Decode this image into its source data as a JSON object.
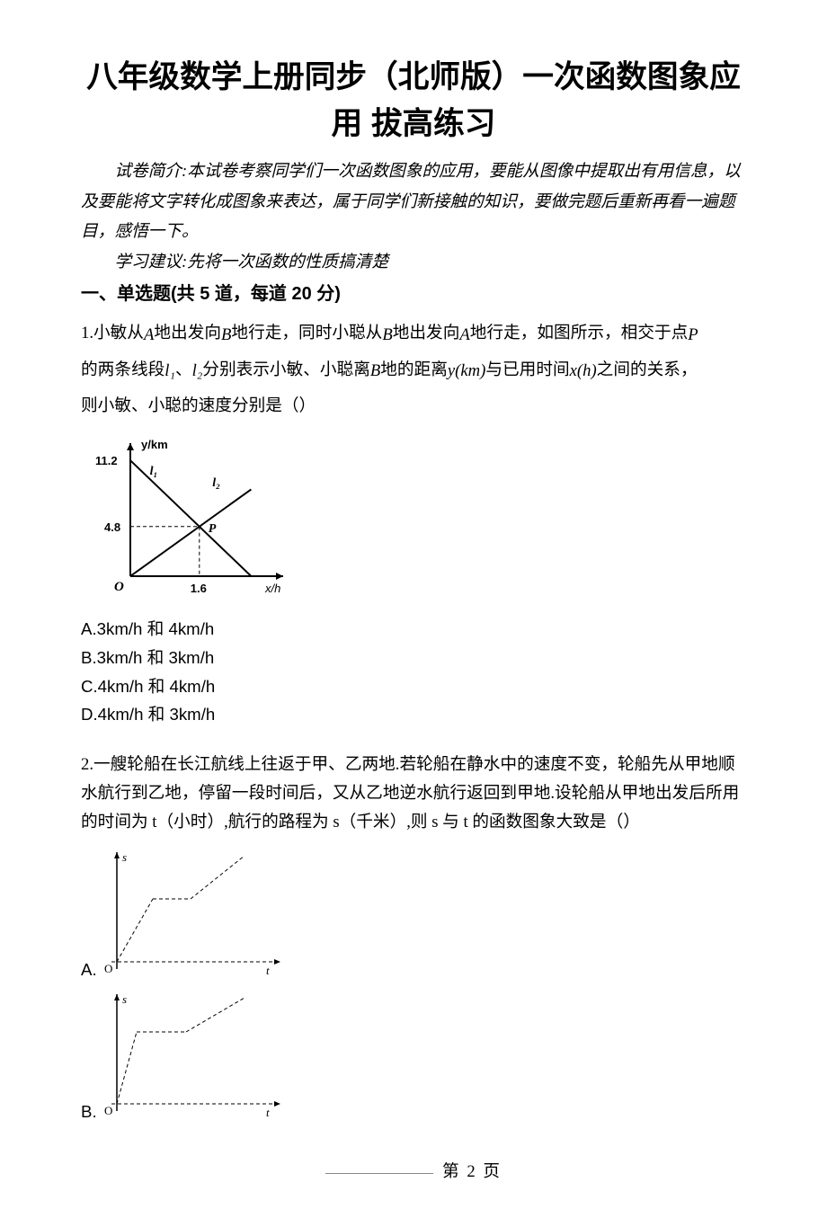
{
  "title_font_size_pt": 26,
  "body_font_size_pt": 14,
  "section_font_size_pt": 15,
  "title_line1": "八年级数学上册同步（北师版）一次函数图象应",
  "title_line2": "用 拔高练习",
  "intro": "试卷简介:本试卷考察同学们一次函数图象的应用，要能从图像中提取出有用信息，以及要能将文字转化成图象来表达，属于同学们新接触的知识，要做完题后重新再看一遍题目，感悟一下。",
  "suggestion": "学习建议:先将一次函数的性质搞清楚",
  "section_heading": "一、单选题(共 5 道，每道 20 分)",
  "q1": {
    "prefix": "1.小敏从",
    "seg_a1": "地出发向",
    "seg_a2": "地行走，同时小聪从",
    "seg_a3": "地出发向",
    "seg_a4": "地行走，如图所示，相交于点",
    "seg_line2a": "的两条线段",
    "seg_line2b": "、",
    "seg_line2c": "分别表示小敏、小聪离",
    "seg_line2d": "地的距离",
    "seg_line2e": "与已用时间",
    "seg_line2f": "之间的关系，",
    "seg_line3": "则小敏、小聪的速度分别是（）",
    "var_A": "A",
    "var_B": "B",
    "var_P": "P",
    "var_l1": "l₁",
    "var_l2": "l₂",
    "var_ykm": "y(km)",
    "var_xh": "x(h)",
    "optA": "A.3km/h 和 4km/h",
    "optB": "B.3km/h 和 3km/h",
    "optC": "C.4km/h 和 4km/h",
    "optD": "D.4km/h 和 3km/h"
  },
  "q1_graph": {
    "y_label_top": "y/km",
    "x_label": "x/h",
    "origin": "O",
    "y_tick_hi": "11.2",
    "y_tick_lo": "4.8",
    "x_tick": "1.6",
    "l1_label": "l₁",
    "l2_label": "l₂",
    "p_label": "P",
    "axis_color": "#000000",
    "line_color": "#000000",
    "dash_pattern": "4,3",
    "font_size": 13
  },
  "q2": {
    "text": "2.一艘轮船在长江航线上往返于甲、乙两地.若轮船在静水中的速度不变，轮船先从甲地顺水航行到乙地，停留一段时间后，又从乙地逆水航行返回到甲地.设轮船从甲地出发后所用的时间为 t（小时）,航行的路程为 s（千米）,则 s 与 t 的函数图象大致是（）",
    "optA_label": "A.",
    "optB_label": "B."
  },
  "q2_graph_common": {
    "y_label": "s",
    "x_label": "t",
    "origin": "O",
    "axis_color": "#000000",
    "dash_pattern": "4,3",
    "line_color": "#000000",
    "font_size": 13
  },
  "q2_graphA": {
    "segments": [
      [
        18,
        130,
        58,
        60
      ],
      [
        58,
        60,
        100,
        60
      ],
      [
        100,
        60,
        160,
        12
      ]
    ]
  },
  "q2_graphB": {
    "segments": [
      [
        18,
        130,
        40,
        50
      ],
      [
        40,
        50,
        95,
        50
      ],
      [
        95,
        50,
        160,
        12
      ]
    ]
  },
  "footer": {
    "page_label": "第 2 页"
  }
}
